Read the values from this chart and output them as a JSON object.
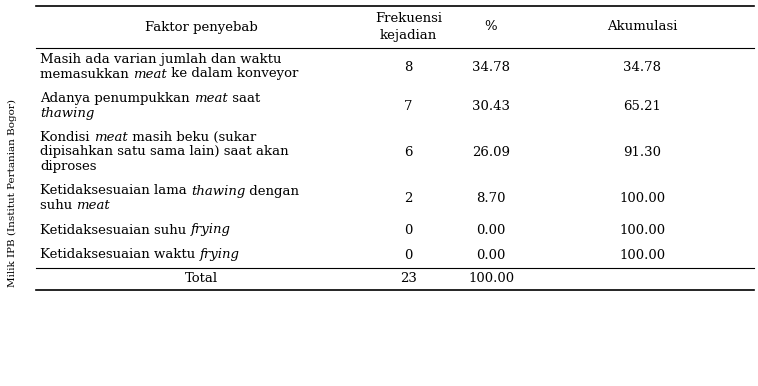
{
  "col_headers": [
    "Faktor penyebab",
    "Frekuensi\nkejadian",
    "%",
    "Akumulasi"
  ],
  "row_data": [
    {
      "lines": [
        [
          [
            "Masih ada varian jumlah dan waktu",
            "normal"
          ]
        ],
        [
          [
            "memasukkan ",
            "normal"
          ],
          [
            "meat",
            "italic"
          ],
          [
            " ke dalam konveyor",
            "normal"
          ]
        ]
      ],
      "frekuensi": "8",
      "persen": "34.78",
      "akumulasi": "34.78",
      "n_lines": 2
    },
    {
      "lines": [
        [
          [
            "Adanya penumpukkan ",
            "normal"
          ],
          [
            "meat",
            "italic"
          ],
          [
            " saat",
            "normal"
          ]
        ],
        [
          [
            "thawing",
            "italic"
          ]
        ]
      ],
      "frekuensi": "7",
      "persen": "30.43",
      "akumulasi": "65.21",
      "n_lines": 2
    },
    {
      "lines": [
        [
          [
            "Kondisi ",
            "normal"
          ],
          [
            "meat",
            "italic"
          ],
          [
            " masih beku (sukar",
            "normal"
          ]
        ],
        [
          [
            "dipisahkan satu sama lain) saat akan",
            "normal"
          ]
        ],
        [
          [
            "diproses",
            "normal"
          ]
        ]
      ],
      "frekuensi": "6",
      "persen": "26.09",
      "akumulasi": "91.30",
      "n_lines": 3
    },
    {
      "lines": [
        [
          [
            "Ketidaksesuaian lama ",
            "normal"
          ],
          [
            "thawing",
            "italic"
          ],
          [
            " dengan",
            "normal"
          ]
        ],
        [
          [
            "suhu ",
            "normal"
          ],
          [
            "meat",
            "italic"
          ]
        ]
      ],
      "frekuensi": "2",
      "persen": "8.70",
      "akumulasi": "100.00",
      "n_lines": 2
    },
    {
      "lines": [
        [
          [
            "Ketidaksesuaian suhu ",
            "normal"
          ],
          [
            "frying",
            "italic"
          ]
        ]
      ],
      "frekuensi": "0",
      "persen": "0.00",
      "akumulasi": "100.00",
      "n_lines": 1
    },
    {
      "lines": [
        [
          [
            "Ketidaksesuaian waktu ",
            "normal"
          ],
          [
            "frying",
            "italic"
          ]
        ]
      ],
      "frekuensi": "0",
      "persen": "0.00",
      "akumulasi": "100.00",
      "n_lines": 1
    }
  ],
  "total": {
    "label": "Total",
    "frekuensi": "23",
    "persen": "100.00"
  },
  "sidebar_text": "Milik IPB (Institut Pertanian Bogor)",
  "bg_color": "#ffffff",
  "text_color": "#000000",
  "font_size": 9.5,
  "sidebar_font_size": 7.5,
  "fig_width": 7.58,
  "fig_height": 3.86,
  "dpi": 100
}
